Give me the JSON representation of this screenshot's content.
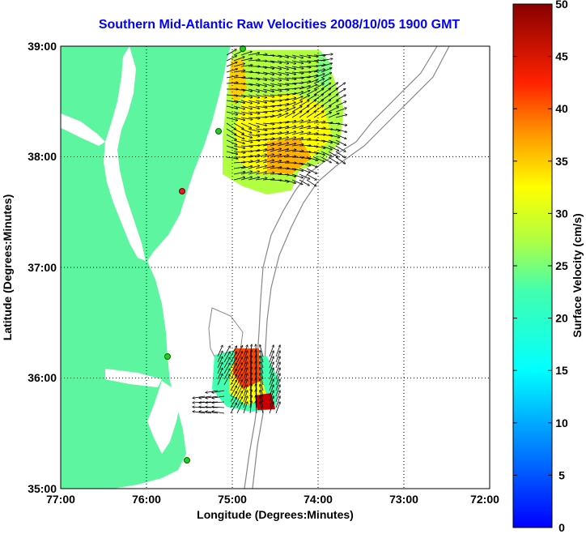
{
  "title": "Southern Mid-Atlantic Raw Velocities 2008/10/05 1900 GMT",
  "map": {
    "xlabel": "Longitude (Degrees:Minutes)",
    "ylabel": "Latitude (Degrees:Minutes)",
    "x_ticks": [
      "77:00",
      "76:00",
      "75:00",
      "74:00",
      "73:00",
      "72:00"
    ],
    "y_ticks": [
      "39:00",
      "38:00",
      "37:00",
      "36:00",
      "35:00"
    ],
    "lon_range": [
      -77,
      -72
    ],
    "lat_range": [
      35,
      39
    ],
    "grid": "dotted",
    "land_color": "#5ef5a0",
    "ocean_color": "#ffffff"
  },
  "colorbar": {
    "label": "Surface Velocity (cm/s)",
    "ticks": [
      "0",
      "5",
      "10",
      "15",
      "20",
      "25",
      "30",
      "35",
      "40",
      "45",
      "50"
    ],
    "range": [
      0,
      50
    ],
    "colormap": "jet",
    "placement": "right"
  },
  "stations": [
    {
      "color": "#22cc22"
    },
    {
      "color": "#22cc22"
    },
    {
      "color": "#dd2222"
    },
    {
      "color": "#22cc22"
    },
    {
      "color": "#22cc22"
    }
  ]
}
